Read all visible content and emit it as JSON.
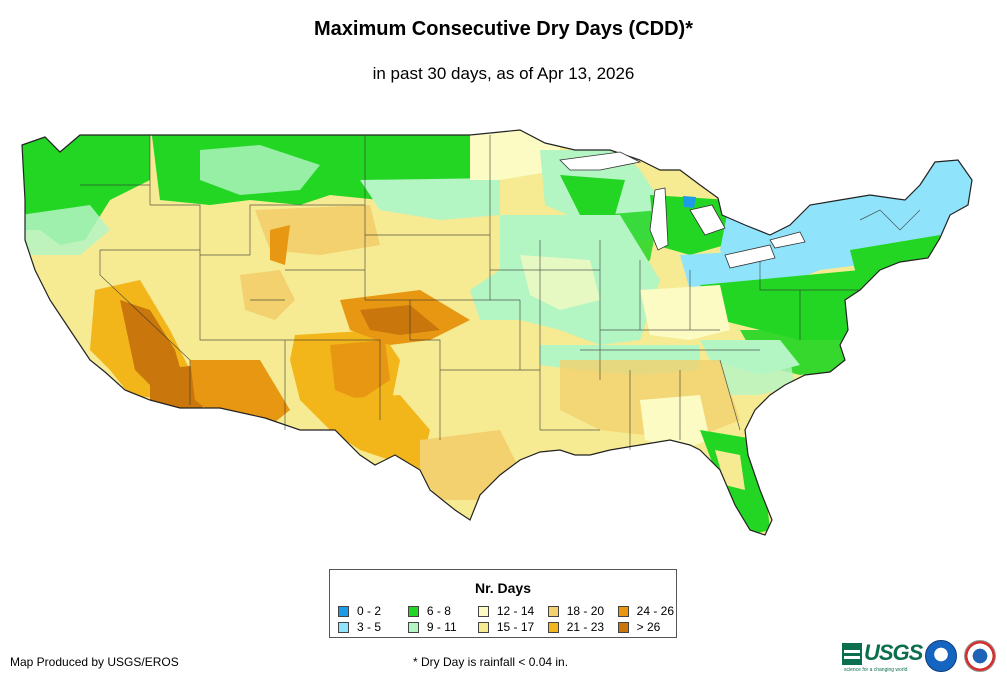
{
  "title": "Maximum Consecutive Dry Days (CDD)*",
  "subtitle": "in past 30 days, as of Apr 13, 2026",
  "legend": {
    "title": "Nr. Days",
    "items": [
      {
        "label": "0 - 2",
        "color": "#1e9be8"
      },
      {
        "label": "3 - 5",
        "color": "#8fe3fb"
      },
      {
        "label": "6 - 8",
        "color": "#22d623"
      },
      {
        "label": "9 - 11",
        "color": "#b4f5c4"
      },
      {
        "label": "12 - 14",
        "color": "#fbfbc3"
      },
      {
        "label": "15 - 17",
        "color": "#f6ea92"
      },
      {
        "label": "18 - 20",
        "color": "#f2d16e"
      },
      {
        "label": "21 - 23",
        "color": "#f2b61b"
      },
      {
        "label": "24 - 26",
        "color": "#e89712"
      },
      {
        "label": "> 26",
        "color": "#c9770c"
      }
    ]
  },
  "footer": {
    "producer": "Map Produced by USGS/EROS",
    "note": "* Dry Day is rainfall < 0.04 in."
  },
  "logos": {
    "usgs": "USGS",
    "usgs_tagline": "science for a changing world"
  }
}
